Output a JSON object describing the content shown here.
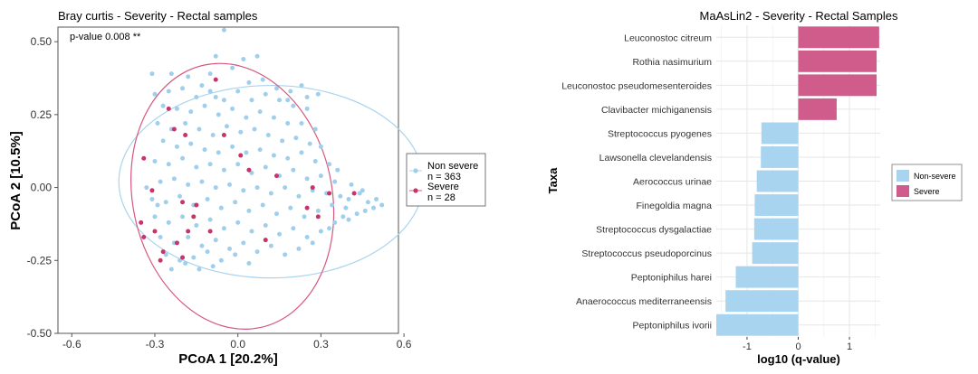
{
  "chart_data": [
    {
      "type": "scatter",
      "title": "Bray curtis - Severity - Rectal samples",
      "annotation": "p-value 0.008 **",
      "xlabel": "PCoA 1 [20.2%]",
      "ylabel": "PCoA 2 [10.5%]",
      "xlim": [
        -0.65,
        0.58
      ],
      "ylim": [
        -0.5,
        0.55
      ],
      "xticks": [
        -0.6,
        -0.3,
        0.0,
        0.3,
        0.6
      ],
      "xtick_labels": [
        "-0.6",
        "-0.3",
        "0.0",
        "0.3",
        "0.6"
      ],
      "yticks": [
        0.5,
        0.25,
        0.0,
        -0.25,
        -0.5
      ],
      "ytick_labels": [
        "0.50",
        "0.25",
        "0.00",
        "-0.25",
        "-0.50"
      ],
      "legend_position": "right",
      "colors": {
        "non_severe": "#9fcfec",
        "severe": "#c8336b",
        "ellipse_non_severe": "#a9d4ef",
        "ellipse_severe": "#d5597f"
      },
      "series": [
        {
          "name": "Non severe",
          "count_label": "n = 363",
          "ellipse": {
            "cx": 0.12,
            "cy": 0.02,
            "rx": 0.55,
            "ry": 0.33
          },
          "points": [
            [
              -0.31,
              0.39
            ],
            [
              -0.24,
              0.39
            ],
            [
              -0.05,
              0.54
            ],
            [
              -0.08,
              0.45
            ],
            [
              0.02,
              0.44
            ],
            [
              -0.1,
              0.39
            ],
            [
              -0.02,
              0.41
            ],
            [
              0.04,
              0.36
            ],
            [
              0.09,
              0.37
            ],
            [
              0.14,
              0.34
            ],
            [
              0.19,
              0.33
            ],
            [
              0.25,
              0.31
            ],
            [
              0.29,
              0.32
            ],
            [
              0.07,
              0.45
            ],
            [
              -0.13,
              0.35
            ],
            [
              -0.3,
              0.32
            ],
            [
              -0.25,
              0.33
            ],
            [
              -0.2,
              0.34
            ],
            [
              -0.15,
              0.31
            ],
            [
              -0.1,
              0.33
            ],
            [
              -0.05,
              0.3
            ],
            [
              0.0,
              0.33
            ],
            [
              0.05,
              0.3
            ],
            [
              0.1,
              0.32
            ],
            [
              0.15,
              0.3
            ],
            [
              0.2,
              0.28
            ],
            [
              0.25,
              0.27
            ],
            [
              -0.27,
              0.28
            ],
            [
              -0.22,
              0.27
            ],
            [
              -0.17,
              0.26
            ],
            [
              -0.12,
              0.28
            ],
            [
              -0.07,
              0.25
            ],
            [
              -0.02,
              0.27
            ],
            [
              0.03,
              0.24
            ],
            [
              0.08,
              0.26
            ],
            [
              0.13,
              0.24
            ],
            [
              0.18,
              0.22
            ],
            [
              0.23,
              0.22
            ],
            [
              0.28,
              0.2
            ],
            [
              -0.29,
              0.22
            ],
            [
              -0.24,
              0.2
            ],
            [
              -0.19,
              0.22
            ],
            [
              -0.14,
              0.2
            ],
            [
              -0.09,
              0.18
            ],
            [
              -0.04,
              0.21
            ],
            [
              0.01,
              0.19
            ],
            [
              0.06,
              0.2
            ],
            [
              0.11,
              0.18
            ],
            [
              0.16,
              0.16
            ],
            [
              0.21,
              0.17
            ],
            [
              0.26,
              0.15
            ],
            [
              0.3,
              0.14
            ],
            [
              -0.27,
              0.16
            ],
            [
              -0.22,
              0.14
            ],
            [
              -0.17,
              0.15
            ],
            [
              -0.12,
              0.13
            ],
            [
              -0.07,
              0.12
            ],
            [
              -0.02,
              0.14
            ],
            [
              0.03,
              0.12
            ],
            [
              0.08,
              0.13
            ],
            [
              0.13,
              0.11
            ],
            [
              0.18,
              0.1
            ],
            [
              0.23,
              0.12
            ],
            [
              0.28,
              0.09
            ],
            [
              0.33,
              0.08
            ],
            [
              -0.3,
              0.09
            ],
            [
              -0.25,
              0.08
            ],
            [
              -0.2,
              0.1
            ],
            [
              -0.15,
              0.07
            ],
            [
              -0.1,
              0.08
            ],
            [
              -0.05,
              0.06
            ],
            [
              0.0,
              0.08
            ],
            [
              0.05,
              0.05
            ],
            [
              0.1,
              0.07
            ],
            [
              0.15,
              0.04
            ],
            [
              0.2,
              0.06
            ],
            [
              0.25,
              0.03
            ],
            [
              0.3,
              0.04
            ],
            [
              0.35,
              0.02
            ],
            [
              -0.28,
              0.02
            ],
            [
              -0.23,
              0.03
            ],
            [
              -0.18,
              0.01
            ],
            [
              -0.13,
              0.02
            ],
            [
              -0.08,
              0.0
            ],
            [
              -0.03,
              0.01
            ],
            [
              0.02,
              -0.01
            ],
            [
              0.07,
              0.0
            ],
            [
              0.12,
              -0.02
            ],
            [
              0.17,
              0.0
            ],
            [
              0.22,
              -0.03
            ],
            [
              0.27,
              -0.01
            ],
            [
              0.32,
              -0.02
            ],
            [
              0.37,
              -0.03
            ],
            [
              0.4,
              -0.04
            ],
            [
              0.44,
              -0.02
            ],
            [
              0.47,
              -0.05
            ],
            [
              0.5,
              -0.04
            ],
            [
              0.52,
              -0.06
            ],
            [
              -0.31,
              -0.04
            ],
            [
              -0.26,
              -0.05
            ],
            [
              -0.21,
              -0.03
            ],
            [
              -0.16,
              -0.06
            ],
            [
              -0.11,
              -0.04
            ],
            [
              -0.06,
              -0.07
            ],
            [
              -0.01,
              -0.05
            ],
            [
              0.04,
              -0.08
            ],
            [
              0.09,
              -0.06
            ],
            [
              0.14,
              -0.09
            ],
            [
              0.19,
              -0.07
            ],
            [
              0.24,
              -0.1
            ],
            [
              0.29,
              -0.08
            ],
            [
              0.34,
              -0.06
            ],
            [
              0.39,
              -0.07
            ],
            [
              0.43,
              -0.09
            ],
            [
              0.46,
              -0.08
            ],
            [
              0.49,
              -0.07
            ],
            [
              -0.3,
              -0.1
            ],
            [
              -0.25,
              -0.12
            ],
            [
              -0.2,
              -0.1
            ],
            [
              -0.15,
              -0.13
            ],
            [
              -0.1,
              -0.11
            ],
            [
              -0.05,
              -0.14
            ],
            [
              0.0,
              -0.12
            ],
            [
              0.05,
              -0.15
            ],
            [
              0.1,
              -0.13
            ],
            [
              0.15,
              -0.16
            ],
            [
              0.2,
              -0.14
            ],
            [
              0.25,
              -0.17
            ],
            [
              0.3,
              -0.15
            ],
            [
              0.35,
              -0.12
            ],
            [
              0.4,
              -0.11
            ],
            [
              -0.28,
              -0.17
            ],
            [
              -0.23,
              -0.19
            ],
            [
              -0.18,
              -0.17
            ],
            [
              -0.13,
              -0.2
            ],
            [
              -0.08,
              -0.18
            ],
            [
              -0.03,
              -0.21
            ],
            [
              0.02,
              -0.19
            ],
            [
              0.07,
              -0.22
            ],
            [
              0.12,
              -0.2
            ],
            [
              0.17,
              -0.23
            ],
            [
              0.22,
              -0.21
            ],
            [
              0.27,
              -0.19
            ],
            [
              -0.26,
              -0.23
            ],
            [
              -0.21,
              -0.25
            ],
            [
              -0.16,
              -0.24
            ],
            [
              -0.11,
              -0.22
            ],
            [
              -0.06,
              -0.25
            ],
            [
              -0.01,
              -0.23
            ],
            [
              0.04,
              -0.26
            ],
            [
              -0.24,
              -0.28
            ],
            [
              -0.19,
              -0.26
            ],
            [
              -0.14,
              -0.28
            ],
            [
              -0.09,
              -0.27
            ],
            [
              -0.29,
              -0.06
            ],
            [
              -0.33,
              0.0
            ],
            [
              0.36,
              0.06
            ],
            [
              0.41,
              0.01
            ],
            [
              0.45,
              -0.01
            ],
            [
              0.38,
              -0.1
            ],
            [
              0.33,
              -0.14
            ],
            [
              0.18,
              0.3
            ],
            [
              0.23,
              0.35
            ],
            [
              -0.18,
              0.38
            ],
            [
              -0.08,
              0.31
            ]
          ]
        },
        {
          "name": "Severe",
          "count_label": "n = 28",
          "ellipse": {
            "cx": -0.02,
            "cy": -0.03,
            "rx": 0.36,
            "ry": 0.46,
            "angle": -12
          },
          "points": [
            [
              -0.08,
              0.37
            ],
            [
              -0.25,
              0.27
            ],
            [
              -0.23,
              0.2
            ],
            [
              -0.19,
              0.18
            ],
            [
              -0.05,
              0.18
            ],
            [
              -0.34,
              0.1
            ],
            [
              0.01,
              0.11
            ],
            [
              0.04,
              0.06
            ],
            [
              -0.31,
              -0.01
            ],
            [
              0.14,
              0.04
            ],
            [
              -0.2,
              -0.05
            ],
            [
              -0.16,
              -0.1
            ],
            [
              0.25,
              -0.07
            ],
            [
              0.33,
              -0.02
            ],
            [
              0.42,
              -0.02
            ],
            [
              -0.35,
              -0.12
            ],
            [
              -0.3,
              -0.15
            ],
            [
              -0.18,
              -0.15
            ],
            [
              -0.1,
              -0.15
            ],
            [
              -0.34,
              -0.17
            ],
            [
              -0.22,
              -0.19
            ],
            [
              -0.27,
              -0.22
            ],
            [
              -0.28,
              -0.25
            ],
            [
              0.29,
              -0.1
            ],
            [
              -0.2,
              -0.24
            ],
            [
              0.1,
              -0.18
            ],
            [
              -0.15,
              -0.06
            ],
            [
              0.27,
              0.0
            ]
          ]
        }
      ]
    },
    {
      "type": "bar",
      "orientation": "horizontal",
      "title": "MaAsLin2 - Severity - Rectal Samples",
      "xlabel": "log10 (q-value)",
      "ylabel": "Taxa",
      "xlim": [
        -1.6,
        1.6
      ],
      "xticks": [
        -1,
        0,
        1
      ],
      "xtick_labels": [
        "-1",
        "0",
        "1"
      ],
      "legend_position": "right",
      "legend": [
        {
          "name": "Non-severe",
          "color": "#a8d4ef"
        },
        {
          "name": "Severe",
          "color": "#d05c8b"
        }
      ],
      "categories": [
        "Leuconostoc citreum",
        "Rothia nasimurium",
        "Leuconostoc pseudomesenteroides",
        "Clavibacter michiganensis",
        "Streptococcus pyogenes",
        "Lawsonella clevelandensis",
        "Aerococcus urinae",
        "Finegoldia magna",
        "Streptococcus dysgalactiae",
        "Streptococcus pseudoporcinus",
        "Peptoniphilus harei",
        "Anaerococcus mediterraneensis",
        "Peptoniphilus ivorii"
      ],
      "values": [
        1.58,
        1.53,
        1.53,
        0.75,
        -0.72,
        -0.73,
        -0.81,
        -0.85,
        -0.86,
        -0.9,
        -1.22,
        -1.42,
        -1.6
      ],
      "groups": [
        "Severe",
        "Severe",
        "Severe",
        "Severe",
        "Non-severe",
        "Non-severe",
        "Non-severe",
        "Non-severe",
        "Non-severe",
        "Non-severe",
        "Non-severe",
        "Non-severe",
        "Non-severe"
      ]
    }
  ]
}
